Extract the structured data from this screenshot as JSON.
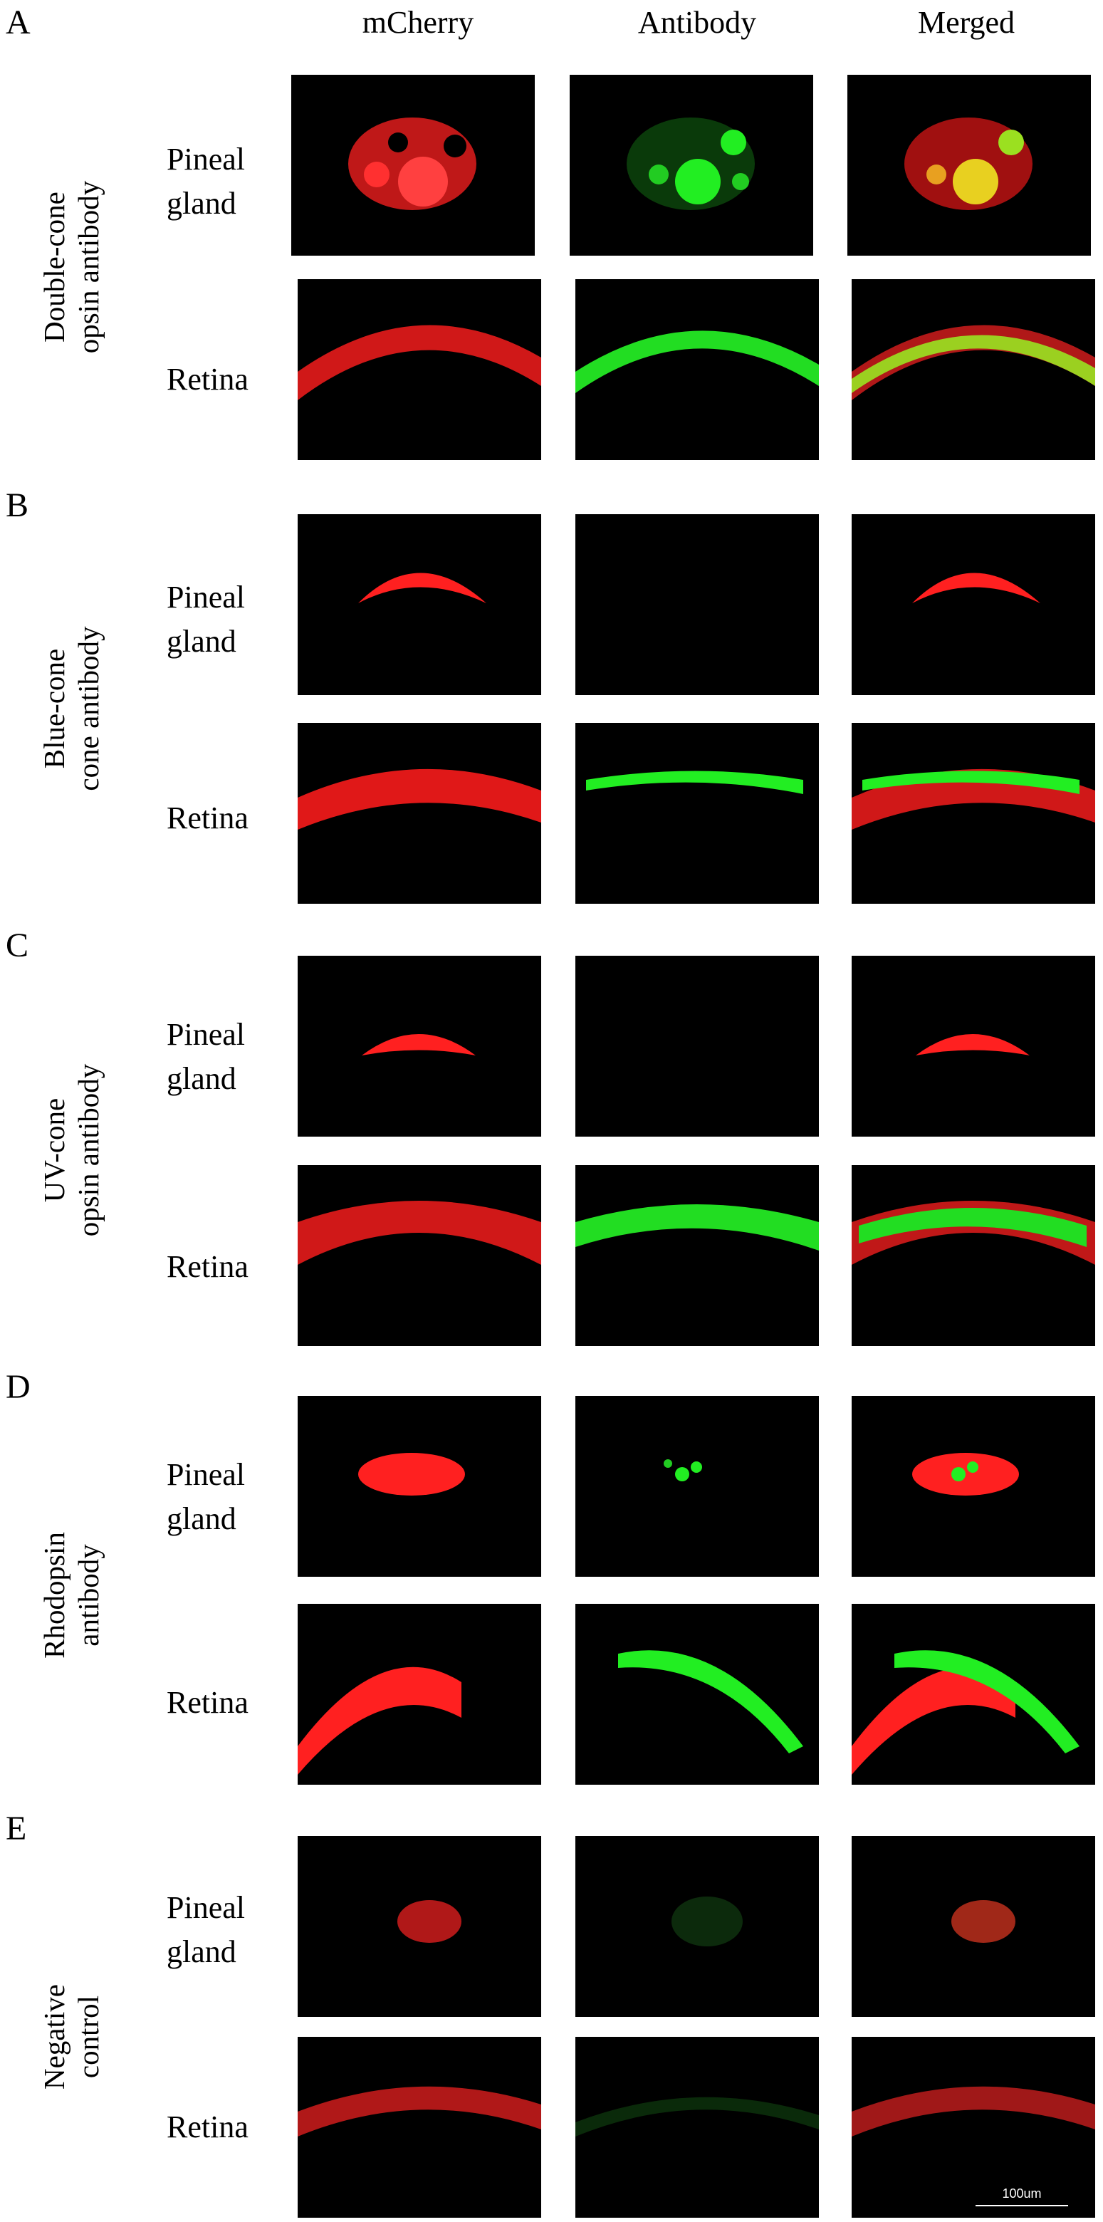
{
  "columns": [
    "mCherry",
    "Antibody",
    "Merged"
  ],
  "panels": [
    {
      "letter": "A",
      "label_lines": [
        "Double-cone",
        "opsin antibody"
      ],
      "rows": [
        "Pineal gland",
        "Retina"
      ]
    },
    {
      "letter": "B",
      "label_lines": [
        "Blue-cone",
        "cone antibody"
      ],
      "rows": [
        "Pineal gland",
        "Retina"
      ]
    },
    {
      "letter": "C",
      "label_lines": [
        "UV-cone",
        "opsin antibody"
      ],
      "rows": [
        "Pineal gland",
        "Retina"
      ]
    },
    {
      "letter": "D",
      "label_lines": [
        "Rhodopsin",
        "antibody"
      ],
      "rows": [
        "Pineal gland",
        "Retina"
      ]
    },
    {
      "letter": "E",
      "label_lines": [
        "Negative",
        "control"
      ],
      "rows": [
        "Pineal gland",
        "Retina"
      ]
    }
  ],
  "row_labels": {
    "pineal_line1": "Pineal",
    "pineal_line2": "gland",
    "retina": "Retina"
  },
  "scale_bar": "100um",
  "colors": {
    "mcherry": "#ff2020",
    "antibody": "#22ee22",
    "merged_overlap": "#e8d020",
    "background": "#000000"
  }
}
